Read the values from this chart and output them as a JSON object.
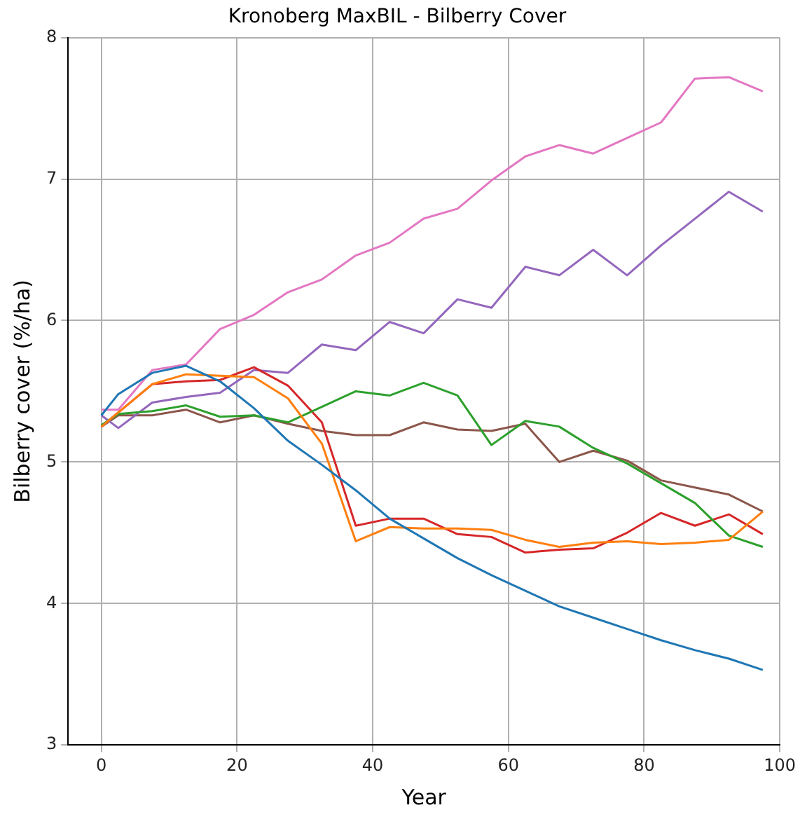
{
  "chart_data": {
    "type": "line",
    "title": "Kronoberg MaxBIL - Bilberry Cover",
    "xlabel": "Year",
    "ylabel": "Bilberry cover (%/ha)",
    "x": [
      0,
      2.5,
      7.5,
      12.5,
      17.5,
      22.5,
      27.5,
      32.5,
      37.5,
      42.5,
      47.5,
      52.5,
      57.5,
      62.5,
      67.5,
      72.5,
      77.5,
      82.5,
      87.5,
      92.5,
      97.5
    ],
    "series": [
      {
        "color": "#1f77b4",
        "values": [
          5.33,
          5.48,
          5.63,
          5.68,
          5.57,
          5.38,
          5.15,
          4.98,
          4.8,
          4.6,
          4.46,
          4.32,
          4.2,
          4.09,
          3.98,
          3.9,
          3.82,
          3.74,
          3.67,
          3.61,
          3.53
        ]
      },
      {
        "color": "#ff7f0e",
        "values": [
          5.25,
          5.35,
          5.55,
          5.62,
          5.61,
          5.6,
          5.45,
          5.13,
          4.44,
          4.54,
          4.53,
          4.53,
          4.52,
          4.45,
          4.4,
          4.43,
          4.44,
          4.42,
          4.43,
          4.45,
          4.65
        ]
      },
      {
        "color": "#2ca02c",
        "values": [
          5.26,
          5.34,
          5.36,
          5.4,
          5.32,
          5.33,
          5.28,
          5.39,
          5.5,
          5.47,
          5.56,
          5.47,
          5.12,
          5.29,
          5.25,
          5.1,
          4.99,
          4.85,
          4.71,
          4.48,
          4.4
        ]
      },
      {
        "color": "#d62728",
        "values": [
          5.25,
          5.35,
          5.55,
          5.57,
          5.58,
          5.67,
          5.54,
          5.28,
          4.55,
          4.6,
          4.6,
          4.49,
          4.47,
          4.36,
          4.38,
          4.39,
          4.5,
          4.64,
          4.55,
          4.63,
          4.49
        ]
      },
      {
        "color": "#9467bd",
        "values": [
          5.33,
          5.24,
          5.42,
          5.46,
          5.49,
          5.65,
          5.63,
          5.83,
          5.79,
          5.99,
          5.91,
          6.15,
          6.09,
          6.38,
          6.32,
          6.5,
          6.32,
          6.53,
          6.72,
          6.91,
          6.77
        ]
      },
      {
        "color": "#8c564b",
        "values": [
          5.25,
          5.33,
          5.33,
          5.37,
          5.28,
          5.33,
          5.27,
          5.22,
          5.19,
          5.19,
          5.28,
          5.23,
          5.22,
          5.27,
          5.0,
          5.08,
          5.01,
          4.87,
          4.82,
          4.77,
          4.65
        ]
      },
      {
        "color": "#e377c2",
        "values": [
          5.37,
          5.37,
          5.65,
          5.69,
          5.94,
          6.04,
          6.2,
          6.29,
          6.46,
          6.55,
          6.72,
          6.79,
          6.99,
          7.16,
          7.24,
          7.18,
          7.29,
          7.4,
          7.71,
          7.72,
          7.62
        ]
      }
    ],
    "xlim": [
      -4.9,
      100
    ],
    "xticks": [
      0,
      20,
      40,
      60,
      80,
      100
    ],
    "ylim": [
      3,
      8
    ],
    "yticks": [
      3,
      4,
      5,
      6,
      7,
      8
    ],
    "grid": true,
    "legend": false
  }
}
